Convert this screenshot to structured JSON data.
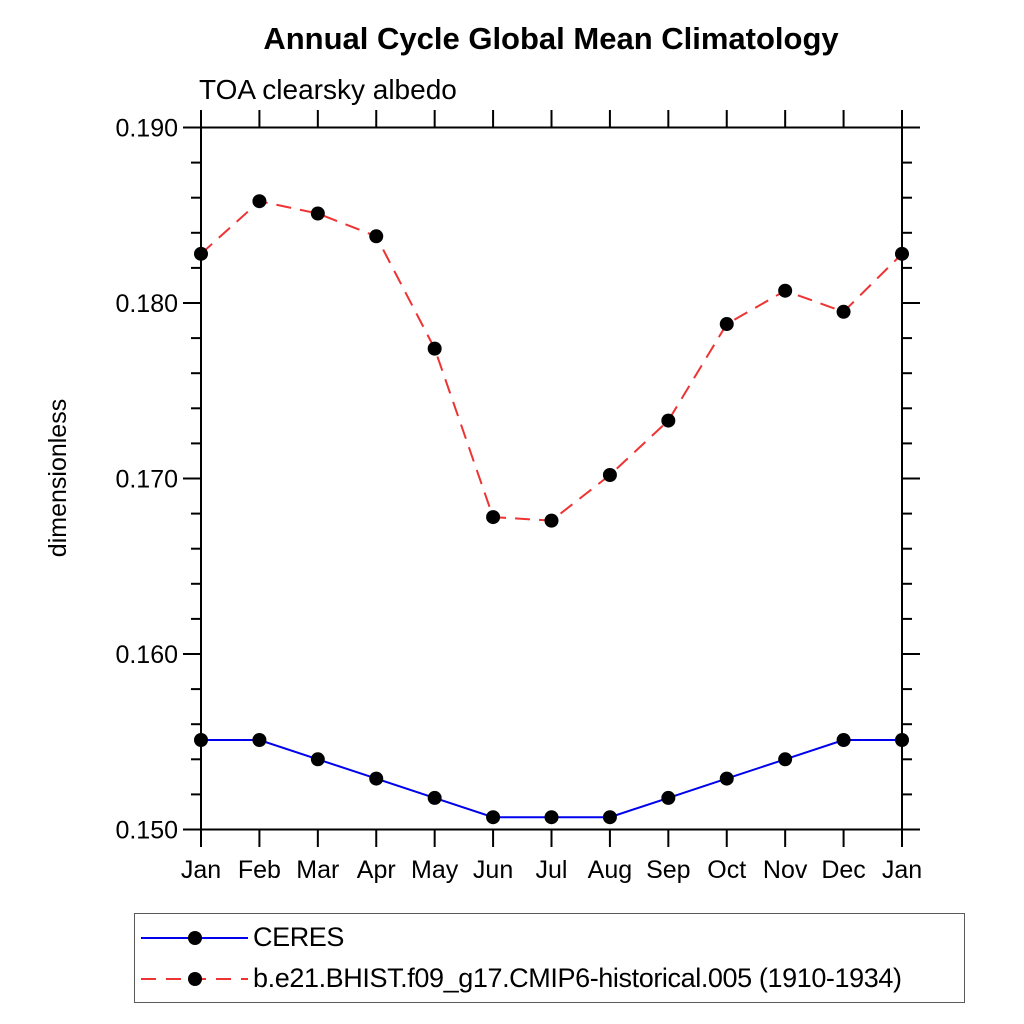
{
  "title": "Annual Cycle Global Mean Climatology",
  "subtitle": "TOA clearsky albedo",
  "chart_data": {
    "type": "line",
    "categories": [
      "Jan",
      "Feb",
      "Mar",
      "Apr",
      "May",
      "Jun",
      "Jul",
      "Aug",
      "Sep",
      "Oct",
      "Nov",
      "Dec",
      "Jan"
    ],
    "xlabel": "",
    "ylabel": "dimensionless",
    "ylim": [
      0.15,
      0.19
    ],
    "ytick_major_step": 0.01,
    "ytick_minor_step": 0.002,
    "ytick_decimals": 3,
    "ytick_labels": [
      "0.150",
      "0.160",
      "0.170",
      "0.180",
      "0.190"
    ],
    "grid": false,
    "legend_position": "bottom-box",
    "marker": {
      "shape": "circle",
      "color": "#000000"
    },
    "series": [
      {
        "name": "CERES",
        "color": "#0000ee",
        "line_style": "solid",
        "values": [
          0.1551,
          0.1551,
          0.154,
          0.1529,
          0.1518,
          0.1507,
          0.1507,
          0.1507,
          0.1518,
          0.1529,
          0.154,
          0.1551,
          0.1551
        ]
      },
      {
        "name": "b.e21.BHIST.f09_g17.CMIP6-historical.005 (1910-1934)",
        "color": "#ee3333",
        "line_style": "dashed",
        "values": [
          0.1828,
          0.1858,
          0.1851,
          0.1838,
          0.1774,
          0.1678,
          0.1676,
          0.1702,
          0.1733,
          0.1788,
          0.1807,
          0.1795,
          0.1828
        ]
      }
    ]
  }
}
